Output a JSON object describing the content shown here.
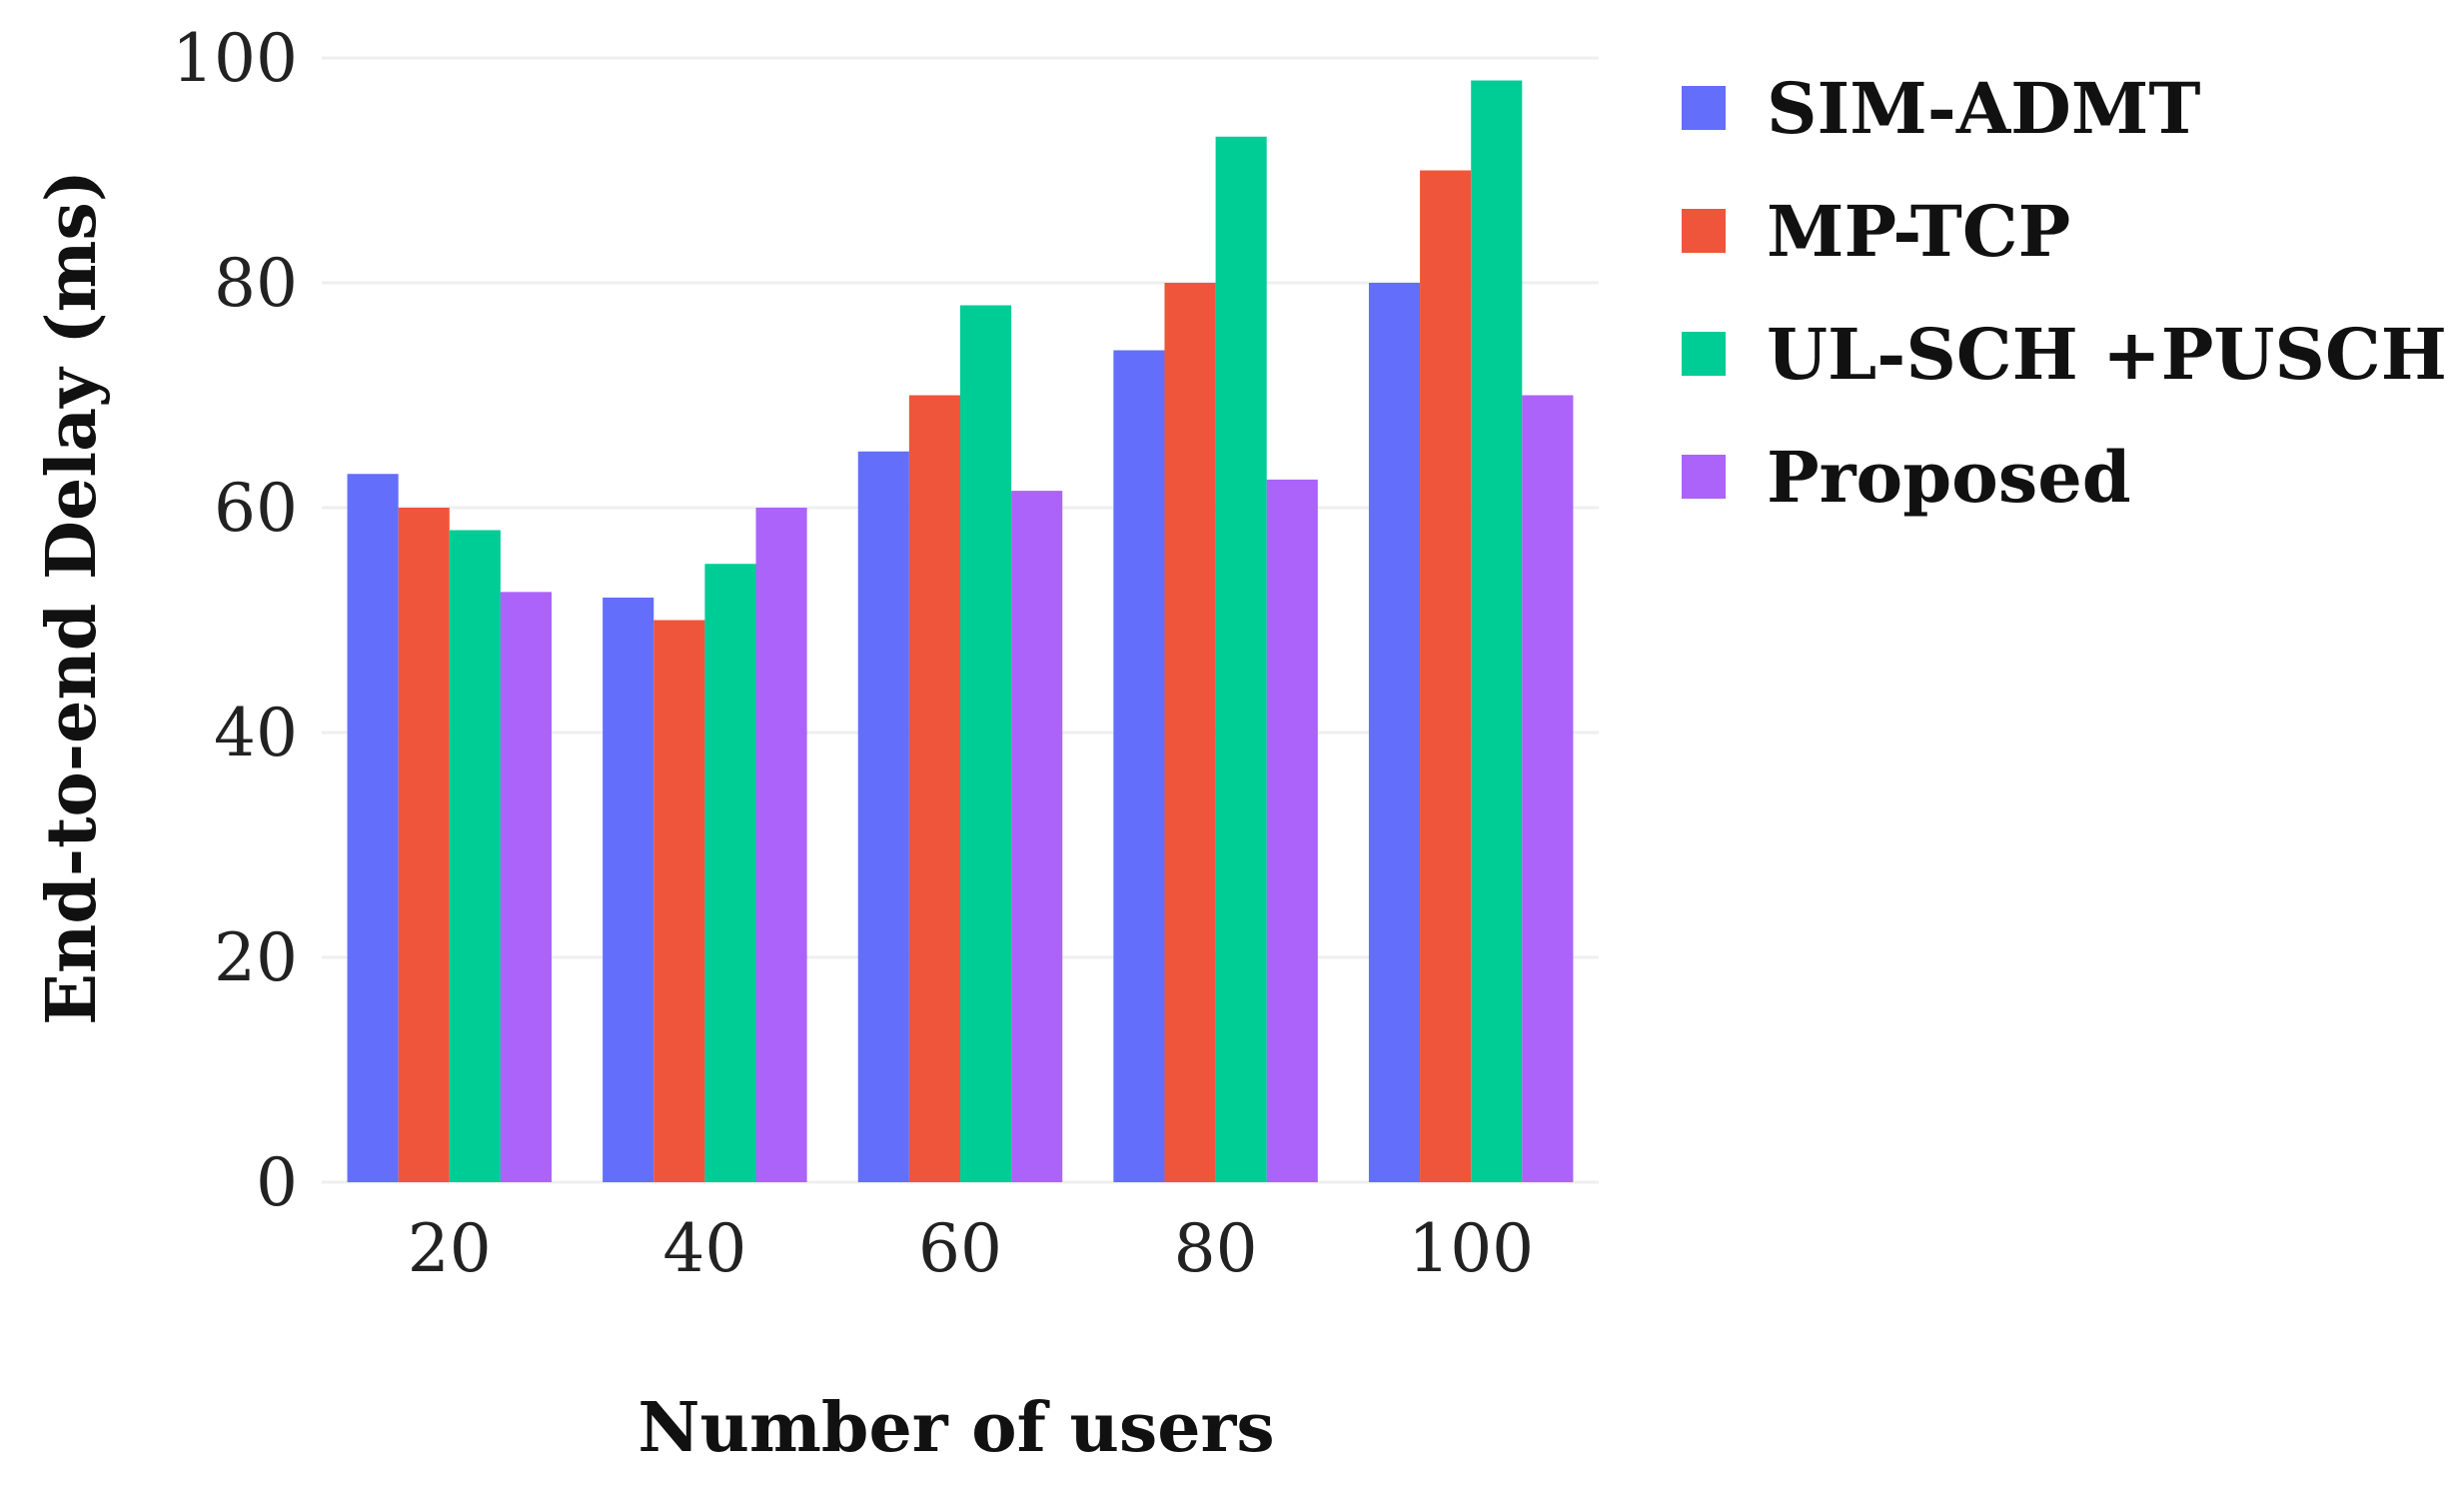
{
  "chart_data": {
    "type": "bar",
    "title": "",
    "xlabel": "Number of users",
    "ylabel": "End-to-end Delay (ms)",
    "categories": [
      "20",
      "40",
      "60",
      "80",
      "100"
    ],
    "ylim": [
      0,
      100
    ],
    "yticks": [
      "0",
      "20",
      "40",
      "60",
      "80",
      "100"
    ],
    "grid": true,
    "legend_position": "right",
    "series": [
      {
        "name": "SIM-ADMT",
        "color": "#636efa",
        "values": [
          63,
          52,
          65,
          74,
          80
        ]
      },
      {
        "name": "MP-TCP",
        "color": "#ef553b",
        "values": [
          60,
          50,
          70,
          80,
          90
        ]
      },
      {
        "name": "UL-SCH +PUSCH",
        "color": "#00cc96",
        "values": [
          58,
          55,
          78,
          93,
          98
        ]
      },
      {
        "name": "Proposed",
        "color": "#ab63fa",
        "values": [
          52.5,
          60,
          61.5,
          62.5,
          70
        ]
      }
    ]
  }
}
